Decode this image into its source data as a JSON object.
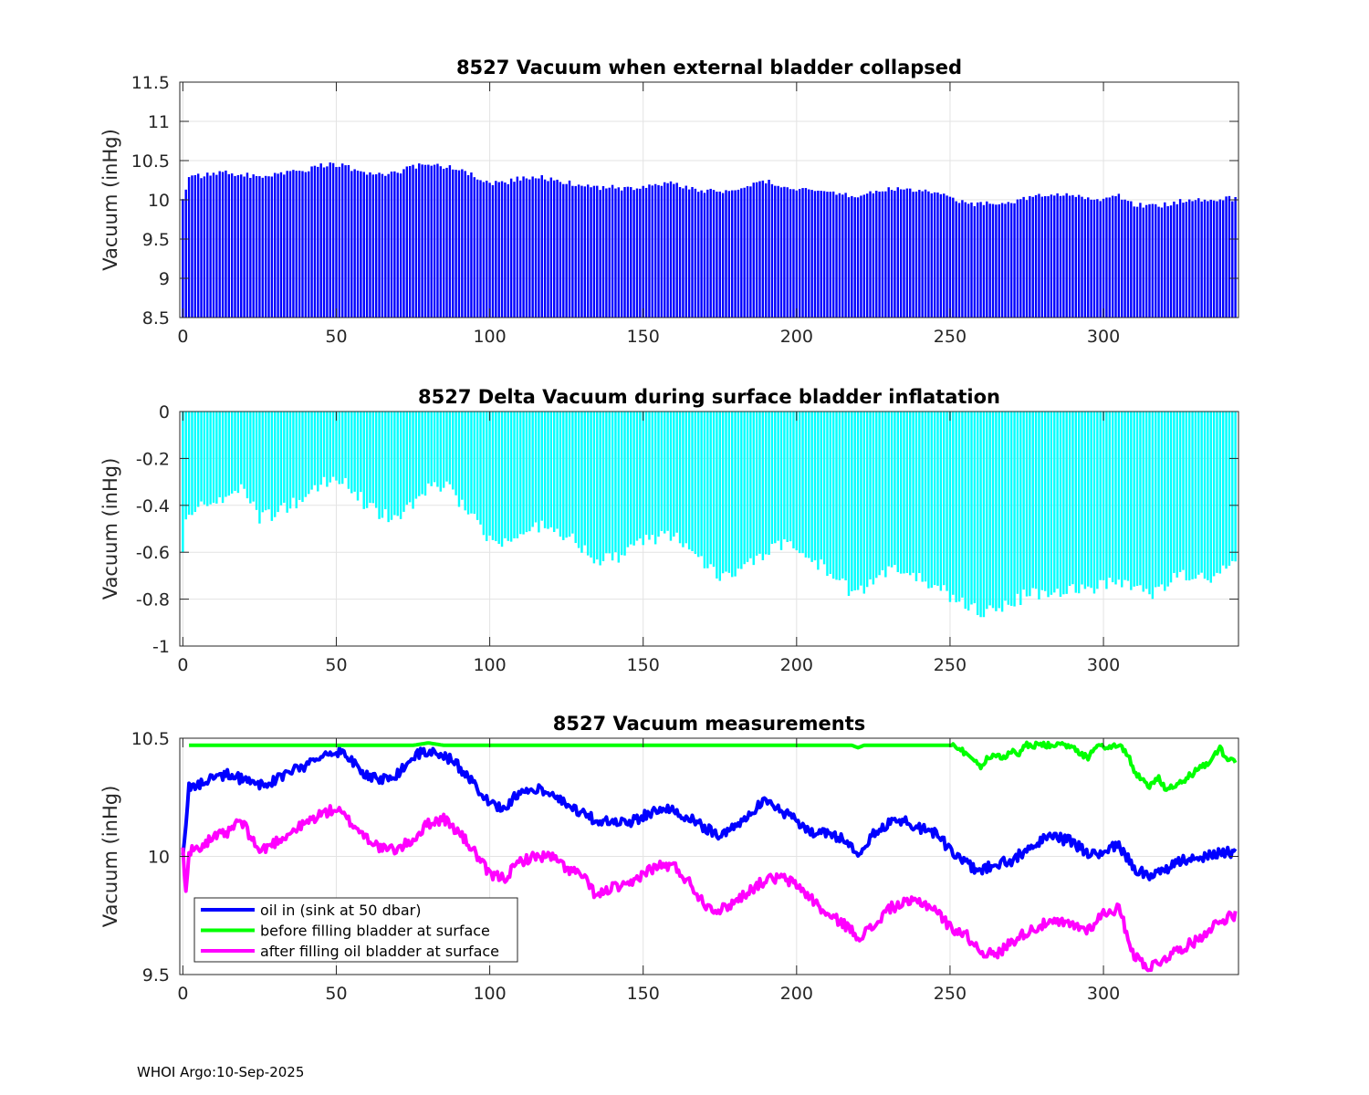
{
  "footer": "WHOI Argo:10-Sep-2025",
  "chart_data": [
    {
      "type": "bar",
      "title": "8527 Vacuum when external bladder collapsed",
      "xlabel": "",
      "ylabel": "Vacuum (inHg)",
      "xlim": [
        -1,
        344
      ],
      "ylim": [
        8.5,
        11.5
      ],
      "xticks": [
        0,
        50,
        100,
        150,
        200,
        250,
        300
      ],
      "yticks": [
        8.5,
        9,
        9.5,
        10,
        10.5,
        11,
        11.5
      ],
      "ytick_labels": [
        "8.5",
        "9",
        "9.5",
        "10",
        "10.5",
        "11",
        "11.5"
      ],
      "grid": true,
      "color": "#0000ff",
      "baseline": 8.5,
      "series_note": "per-profile values, see anchors",
      "x_anchor": [
        0,
        1,
        2,
        10,
        15,
        20,
        25,
        30,
        35,
        40,
        45,
        50,
        55,
        60,
        65,
        70,
        75,
        80,
        85,
        90,
        95,
        100,
        105,
        110,
        115,
        120,
        125,
        130,
        135,
        140,
        145,
        150,
        155,
        160,
        165,
        170,
        175,
        180,
        185,
        190,
        195,
        200,
        205,
        210,
        215,
        220,
        225,
        230,
        235,
        240,
        245,
        250,
        255,
        260,
        265,
        270,
        275,
        280,
        285,
        290,
        295,
        300,
        305,
        310,
        315,
        320,
        325,
        330,
        335,
        340,
        343
      ],
      "y_anchor": [
        10.01,
        10.13,
        10.29,
        10.33,
        10.35,
        10.32,
        10.3,
        10.32,
        10.36,
        10.38,
        10.43,
        10.45,
        10.4,
        10.34,
        10.33,
        10.35,
        10.42,
        10.45,
        10.43,
        10.38,
        10.3,
        10.22,
        10.21,
        10.28,
        10.29,
        10.27,
        10.22,
        10.18,
        10.15,
        10.16,
        10.14,
        10.17,
        10.2,
        10.2,
        10.16,
        10.12,
        10.09,
        10.13,
        10.19,
        10.23,
        10.19,
        10.15,
        10.1,
        10.1,
        10.07,
        10.02,
        10.09,
        10.14,
        10.15,
        10.12,
        10.1,
        10.03,
        9.97,
        9.94,
        9.97,
        9.98,
        10.03,
        10.07,
        10.08,
        10.06,
        10.01,
        10.02,
        10.05,
        9.95,
        9.92,
        9.94,
        9.98,
        9.99,
        10.01,
        10.02,
        10.01
      ]
    },
    {
      "type": "bar",
      "title": "8527 Delta Vacuum during surface bladder inflatation",
      "xlabel": "",
      "ylabel": "Vacuum (inHg)",
      "xlim": [
        -1,
        344
      ],
      "ylim": [
        -1,
        0
      ],
      "xticks": [
        0,
        50,
        100,
        150,
        200,
        250,
        300
      ],
      "yticks": [
        -1,
        -0.8,
        -0.6,
        -0.4,
        -0.2,
        0
      ],
      "ytick_labels": [
        "-1",
        "-0.8",
        "-0.6",
        "-0.4",
        "-0.2",
        "0"
      ],
      "grid": true,
      "color": "#00ffff",
      "baseline": 0,
      "x_anchor": [
        0,
        1,
        2,
        5,
        10,
        15,
        18,
        20,
        25,
        30,
        35,
        40,
        45,
        50,
        55,
        60,
        65,
        70,
        75,
        80,
        85,
        90,
        95,
        100,
        105,
        110,
        115,
        120,
        125,
        130,
        135,
        140,
        145,
        150,
        155,
        160,
        165,
        170,
        175,
        180,
        185,
        190,
        195,
        200,
        205,
        210,
        215,
        220,
        225,
        230,
        235,
        240,
        245,
        250,
        255,
        260,
        265,
        270,
        275,
        280,
        285,
        290,
        295,
        300,
        305,
        310,
        315,
        320,
        325,
        330,
        335,
        340,
        343
      ],
      "y_anchor": [
        -0.6,
        -0.46,
        -0.44,
        -0.41,
        -0.39,
        -0.38,
        -0.33,
        -0.32,
        -0.45,
        -0.44,
        -0.4,
        -0.37,
        -0.31,
        -0.28,
        -0.33,
        -0.4,
        -0.44,
        -0.45,
        -0.4,
        -0.33,
        -0.31,
        -0.38,
        -0.46,
        -0.54,
        -0.57,
        -0.52,
        -0.49,
        -0.49,
        -0.53,
        -0.58,
        -0.63,
        -0.63,
        -0.6,
        -0.56,
        -0.53,
        -0.53,
        -0.58,
        -0.64,
        -0.7,
        -0.71,
        -0.65,
        -0.6,
        -0.57,
        -0.58,
        -0.63,
        -0.68,
        -0.74,
        -0.78,
        -0.73,
        -0.67,
        -0.67,
        -0.7,
        -0.74,
        -0.79,
        -0.83,
        -0.85,
        -0.86,
        -0.82,
        -0.78,
        -0.77,
        -0.76,
        -0.76,
        -0.76,
        -0.73,
        -0.72,
        -0.75,
        -0.79,
        -0.74,
        -0.7,
        -0.7,
        -0.7,
        -0.66,
        -0.65
      ]
    },
    {
      "type": "line",
      "title": "8527 Vacuum measurements",
      "xlabel": "",
      "ylabel": "Vacuum (inHg)",
      "xlim": [
        -1,
        344
      ],
      "ylim": [
        9.5,
        10.5
      ],
      "xticks": [
        0,
        50,
        100,
        150,
        200,
        250,
        300
      ],
      "yticks": [
        9.5,
        10,
        10.5
      ],
      "ytick_labels": [
        "9.5",
        "10",
        "10.5"
      ],
      "grid": true,
      "legend_position": "bottom-left",
      "series": [
        {
          "name": "oil in (sink at 50 dbar)",
          "color": "#0000ff",
          "x": [
            0,
            1,
            2,
            10,
            15,
            20,
            25,
            30,
            35,
            40,
            45,
            50,
            55,
            60,
            65,
            70,
            75,
            80,
            85,
            90,
            95,
            100,
            105,
            110,
            115,
            120,
            125,
            130,
            135,
            140,
            145,
            150,
            155,
            160,
            165,
            170,
            175,
            180,
            185,
            190,
            195,
            200,
            205,
            210,
            215,
            220,
            225,
            230,
            235,
            240,
            245,
            250,
            255,
            260,
            265,
            270,
            275,
            280,
            285,
            290,
            295,
            300,
            305,
            310,
            315,
            320,
            325,
            330,
            335,
            340,
            343
          ],
          "values": [
            10.01,
            10.13,
            10.29,
            10.33,
            10.35,
            10.32,
            10.3,
            10.32,
            10.36,
            10.38,
            10.43,
            10.45,
            10.4,
            10.34,
            10.33,
            10.35,
            10.42,
            10.45,
            10.43,
            10.38,
            10.3,
            10.22,
            10.21,
            10.28,
            10.29,
            10.27,
            10.22,
            10.18,
            10.15,
            10.16,
            10.14,
            10.17,
            10.2,
            10.2,
            10.16,
            10.12,
            10.09,
            10.13,
            10.19,
            10.23,
            10.19,
            10.15,
            10.1,
            10.1,
            10.07,
            10.02,
            10.09,
            10.14,
            10.15,
            10.12,
            10.1,
            10.03,
            9.97,
            9.94,
            9.97,
            9.98,
            10.03,
            10.07,
            10.08,
            10.06,
            10.01,
            10.02,
            10.05,
            9.95,
            9.92,
            9.94,
            9.98,
            9.99,
            10.01,
            10.02,
            10.01
          ]
        },
        {
          "name": "before filling bladder at surface",
          "color": "#00ff00",
          "x": [
            2,
            75,
            80,
            85,
            218,
            220,
            222,
            250,
            255,
            260,
            262,
            265,
            268,
            270,
            272,
            275,
            290,
            292,
            295,
            298,
            300,
            305,
            308,
            310,
            313,
            315,
            318,
            320,
            325,
            330,
            335,
            338,
            340,
            343
          ],
          "values": [
            10.47,
            10.47,
            10.48,
            10.47,
            10.47,
            10.46,
            10.47,
            10.47,
            10.44,
            10.38,
            10.41,
            10.43,
            10.42,
            10.45,
            10.43,
            10.47,
            10.47,
            10.44,
            10.42,
            10.47,
            10.46,
            10.47,
            10.43,
            10.36,
            10.32,
            10.3,
            10.33,
            10.29,
            10.31,
            10.36,
            10.4,
            10.46,
            10.41,
            10.4
          ]
        },
        {
          "name": "after filling oil bladder at surface",
          "color": "#ff00ff",
          "x": [
            0,
            1,
            2,
            5,
            10,
            15,
            18,
            20,
            25,
            30,
            35,
            40,
            45,
            50,
            55,
            60,
            65,
            70,
            75,
            80,
            85,
            90,
            95,
            100,
            105,
            110,
            115,
            120,
            125,
            130,
            135,
            140,
            145,
            150,
            155,
            160,
            165,
            170,
            175,
            180,
            185,
            190,
            195,
            200,
            205,
            210,
            215,
            220,
            225,
            230,
            235,
            240,
            245,
            250,
            255,
            260,
            265,
            270,
            275,
            280,
            285,
            290,
            295,
            300,
            305,
            310,
            315,
            320,
            325,
            330,
            335,
            340,
            343
          ],
          "values": [
            10.02,
            9.87,
            10.02,
            10.04,
            10.08,
            10.1,
            10.15,
            10.13,
            10.02,
            10.06,
            10.1,
            10.14,
            10.18,
            10.2,
            10.14,
            10.08,
            10.03,
            10.03,
            10.07,
            10.14,
            10.16,
            10.1,
            10.02,
            9.92,
            9.91,
            9.98,
            10.0,
            10.0,
            9.95,
            9.92,
            9.83,
            9.87,
            9.87,
            9.93,
            9.96,
            9.96,
            9.89,
            9.8,
            9.77,
            9.81,
            9.86,
            9.9,
            9.91,
            9.88,
            9.82,
            9.75,
            9.72,
            9.66,
            9.7,
            9.78,
            9.8,
            9.81,
            9.78,
            9.7,
            9.67,
            9.6,
            9.58,
            9.64,
            9.68,
            9.71,
            9.72,
            9.71,
            9.69,
            9.76,
            9.78,
            9.58,
            9.53,
            9.57,
            9.61,
            9.64,
            9.7,
            9.74,
            9.75
          ]
        }
      ]
    }
  ]
}
